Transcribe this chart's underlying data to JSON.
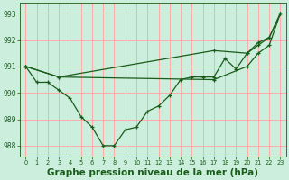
{
  "bg_color": "#cceedd",
  "grid_color": "#ffaaaa",
  "line_color": "#1a5c1a",
  "title": "Graphe pression niveau de la mer (hPa)",
  "title_fontsize": 7.5,
  "xlim": [
    -0.5,
    23.5
  ],
  "ylim": [
    987.6,
    993.4
  ],
  "yticks": [
    988,
    989,
    990,
    991,
    992,
    993
  ],
  "xticks": [
    0,
    1,
    2,
    3,
    4,
    5,
    6,
    7,
    8,
    9,
    10,
    11,
    12,
    13,
    14,
    15,
    16,
    17,
    18,
    19,
    20,
    21,
    22,
    23
  ],
  "line_current_x": [
    0,
    1,
    2,
    3,
    4,
    5,
    6,
    7,
    8,
    9,
    10,
    11,
    12,
    13,
    14,
    15,
    16,
    17,
    18,
    19,
    20,
    21,
    22,
    23
  ],
  "line_current_y": [
    991.0,
    990.4,
    990.4,
    990.1,
    989.8,
    989.1,
    988.7,
    988.0,
    988.0,
    988.6,
    988.7,
    989.3,
    989.5,
    989.9,
    990.5,
    990.6,
    990.6,
    990.6,
    991.3,
    990.9,
    991.5,
    991.8,
    992.1,
    993.0
  ],
  "line_max_x": [
    0,
    3,
    17,
    20,
    21,
    22,
    23
  ],
  "line_max_y": [
    991.0,
    990.6,
    991.6,
    991.5,
    991.9,
    992.1,
    993.0
  ],
  "line_min_x": [
    0,
    3,
    17,
    20,
    21,
    22,
    23
  ],
  "line_min_y": [
    991.0,
    990.6,
    990.5,
    991.0,
    991.5,
    991.8,
    993.0
  ]
}
